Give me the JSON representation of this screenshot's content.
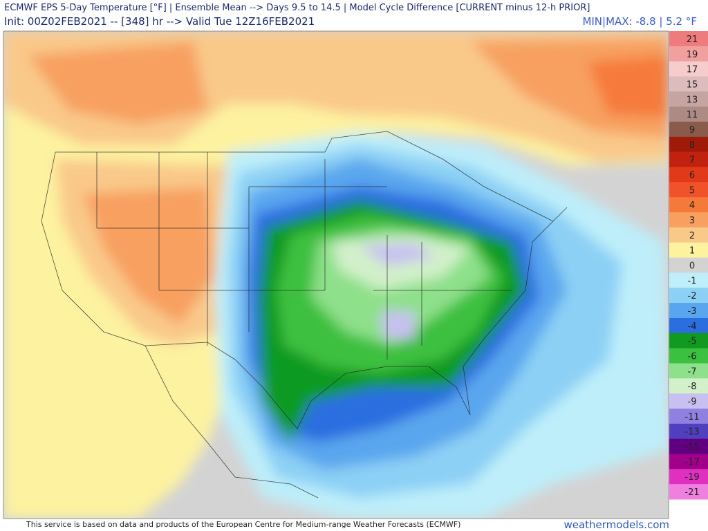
{
  "header": {
    "line1": "ECMWF EPS 5-Day Temperature [°F] | Ensemble Mean --> Days 9.5 to 14.5 | Model Cycle Difference [CURRENT minus 12-h PRIOR]",
    "line2": "Init: 00Z02FEB2021 -- [348] hr --> Valid Tue 12Z16FEB2021",
    "minmax": "MIN|MAX: -8.8 | 5.2 °F"
  },
  "legend": {
    "entries": [
      {
        "label": "21",
        "color": "#ef7c7c"
      },
      {
        "label": "19",
        "color": "#f1a0a0"
      },
      {
        "label": "17",
        "color": "#f6cccc"
      },
      {
        "label": "15",
        "color": "#dcbcbc"
      },
      {
        "label": "13",
        "color": "#c6a4a2"
      },
      {
        "label": "11",
        "color": "#ad8a84"
      },
      {
        "label": "9",
        "color": "#8a5a4a"
      },
      {
        "label": "8",
        "color": "#a01a0a"
      },
      {
        "label": "7",
        "color": "#c0220f"
      },
      {
        "label": "6",
        "color": "#e03a1a"
      },
      {
        "label": "5",
        "color": "#f0522a"
      },
      {
        "label": "4",
        "color": "#f57a3a"
      },
      {
        "label": "3",
        "color": "#f7a060"
      },
      {
        "label": "2",
        "color": "#f9c98a"
      },
      {
        "label": "1",
        "color": "#fdf2a0"
      },
      {
        "label": "0",
        "color": "#d3d3d3"
      },
      {
        "label": "-1",
        "color": "#bdeefa"
      },
      {
        "label": "-2",
        "color": "#8cd0f5"
      },
      {
        "label": "-3",
        "color": "#5aa6ee"
      },
      {
        "label": "-4",
        "color": "#2a6ee0"
      },
      {
        "label": "-5",
        "color": "#109a20"
      },
      {
        "label": "-6",
        "color": "#3cc040"
      },
      {
        "label": "-7",
        "color": "#8ee08a"
      },
      {
        "label": "-8",
        "color": "#d2f0ca"
      },
      {
        "label": "-9",
        "color": "#c8c0f0"
      },
      {
        "label": "-11",
        "color": "#9080e0"
      },
      {
        "label": "-13",
        "color": "#5040c0"
      },
      {
        "label": "-15",
        "color": "#600080"
      },
      {
        "label": "-17",
        "color": "#a0008a"
      },
      {
        "label": "-19",
        "color": "#e030c0"
      },
      {
        "label": "-21",
        "color": "#f080e0"
      }
    ]
  },
  "footer": {
    "credit": "This service is based on data and products of the European Centre for Medium-range Weather Forecasts (ECMWF)",
    "site": "weathermodels.com"
  }
}
